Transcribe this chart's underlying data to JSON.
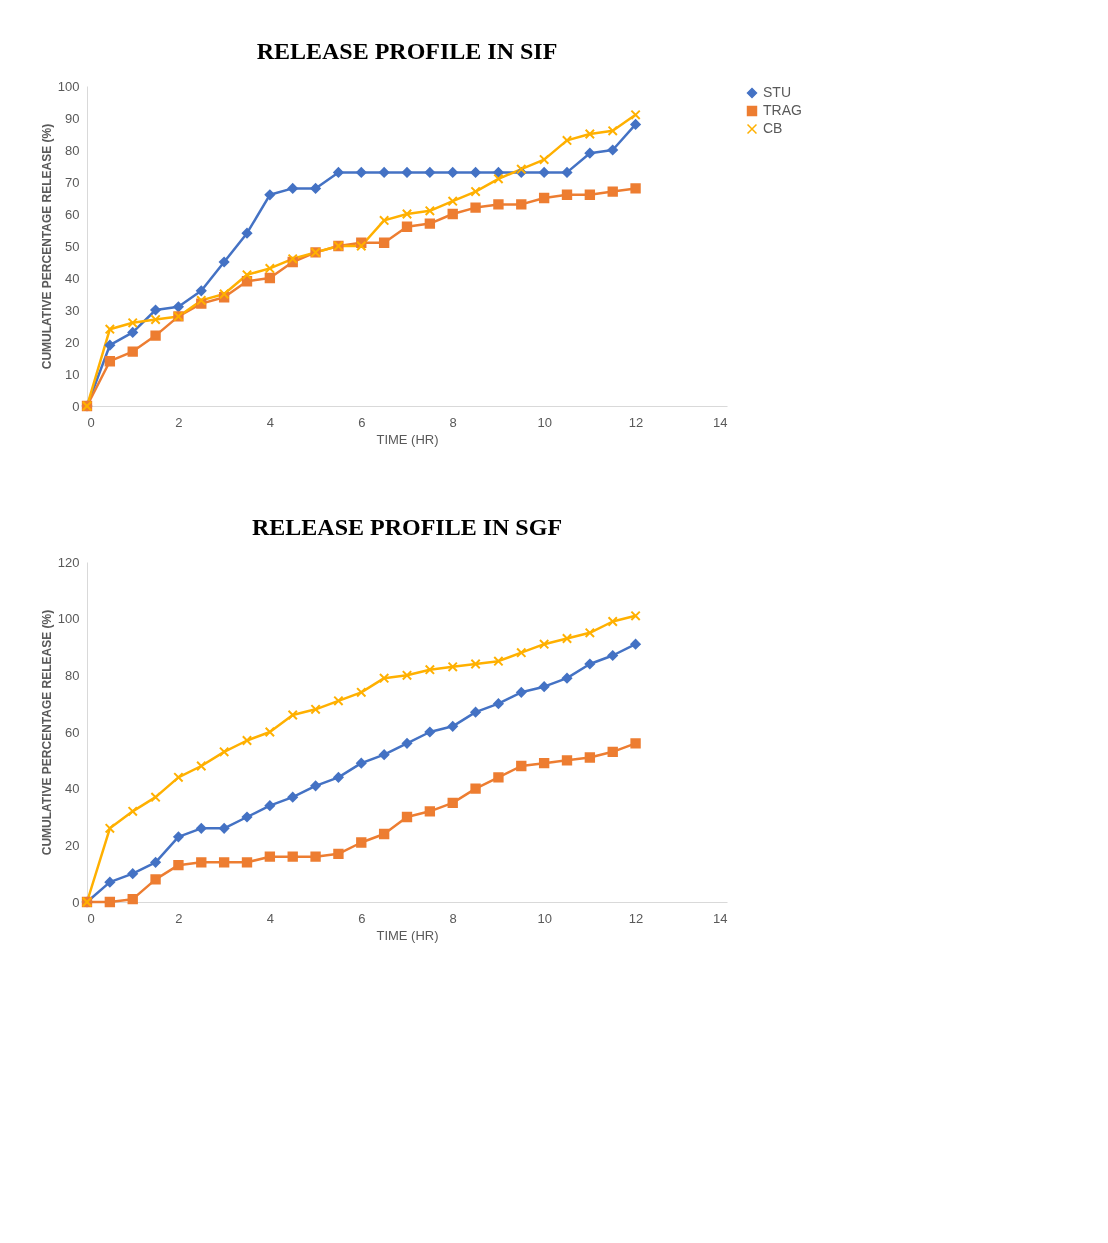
{
  "chart_data": [
    {
      "type": "line",
      "title": "RELEASE PROFILE IN SIF",
      "xlabel": "TIME (HR)",
      "ylabel": "CUMULATIVE PERCENTAGE RELEASE (%)",
      "x": [
        0,
        0.5,
        1,
        1.5,
        2,
        2.5,
        3,
        3.5,
        4,
        4.5,
        5,
        5.5,
        6,
        6.5,
        7,
        7.5,
        8,
        8.5,
        9,
        9.5,
        10,
        10.5,
        11,
        11.5,
        12
      ],
      "xlim": [
        0,
        14
      ],
      "xticks": [
        0,
        2,
        4,
        6,
        8,
        10,
        12,
        14
      ],
      "ylim": [
        0,
        100
      ],
      "yticks": [
        0,
        10,
        20,
        30,
        40,
        50,
        60,
        70,
        80,
        90,
        100
      ],
      "grid": false,
      "legend": "right",
      "series": [
        {
          "name": "STU",
          "color": "#4472c4",
          "marker": "diamond",
          "values": [
            0,
            19,
            23,
            30,
            31,
            36,
            45,
            54,
            66,
            68,
            68,
            73,
            73,
            73,
            73,
            73,
            73,
            73,
            73,
            73,
            73,
            73,
            79,
            80,
            88
          ]
        },
        {
          "name": "TRAG",
          "color": "#ed7d31",
          "marker": "square",
          "values": [
            0,
            14,
            17,
            22,
            28,
            32,
            34,
            39,
            40,
            45,
            48,
            50,
            51,
            51,
            56,
            57,
            60,
            62,
            63,
            63,
            65,
            66,
            66,
            67,
            68
          ]
        },
        {
          "name": "CB",
          "color": "#ffb000",
          "marker": "cross",
          "values": [
            0,
            24,
            26,
            27,
            28,
            33,
            35,
            41,
            43,
            46,
            48,
            50,
            50,
            58,
            60,
            61,
            64,
            67,
            71,
            74,
            77,
            83,
            85,
            86,
            91
          ]
        }
      ]
    },
    {
      "type": "line",
      "title": "RELEASE PROFILE IN SGF",
      "xlabel": "TIME (HR)",
      "ylabel": "CUMULATIVE PERCENTAGE RELEASE (%)",
      "x": [
        0,
        0.5,
        1,
        1.5,
        2,
        2.5,
        3,
        3.5,
        4,
        4.5,
        5,
        5.5,
        6,
        6.5,
        7,
        7.5,
        8,
        8.5,
        9,
        9.5,
        10,
        10.5,
        11,
        11.5,
        12
      ],
      "xlim": [
        0,
        14
      ],
      "xticks": [
        0,
        2,
        4,
        6,
        8,
        10,
        12,
        14
      ],
      "ylim": [
        0,
        120
      ],
      "yticks": [
        0,
        20,
        40,
        60,
        80,
        100,
        120
      ],
      "grid": false,
      "legend": "right",
      "series": [
        {
          "name": "STU",
          "color": "#4472c4",
          "marker": "diamond",
          "values": [
            0,
            7,
            10,
            14,
            23,
            26,
            26,
            30,
            34,
            37,
            41,
            44,
            49,
            52,
            56,
            60,
            62,
            67,
            70,
            74,
            76,
            79,
            84,
            87,
            91
          ]
        },
        {
          "name": "TRAG",
          "color": "#ed7d31",
          "marker": "square",
          "values": [
            0,
            0,
            1,
            8,
            13,
            14,
            14,
            14,
            16,
            16,
            16,
            17,
            21,
            24,
            30,
            32,
            35,
            40,
            44,
            48,
            49,
            50,
            51,
            53,
            56
          ]
        },
        {
          "name": "CB",
          "color": "#ffb000",
          "marker": "cross",
          "values": [
            0,
            26,
            32,
            37,
            44,
            48,
            53,
            57,
            60,
            66,
            68,
            71,
            74,
            79,
            80,
            82,
            83,
            84,
            85,
            88,
            91,
            93,
            95,
            99,
            101
          ]
        }
      ]
    }
  ]
}
